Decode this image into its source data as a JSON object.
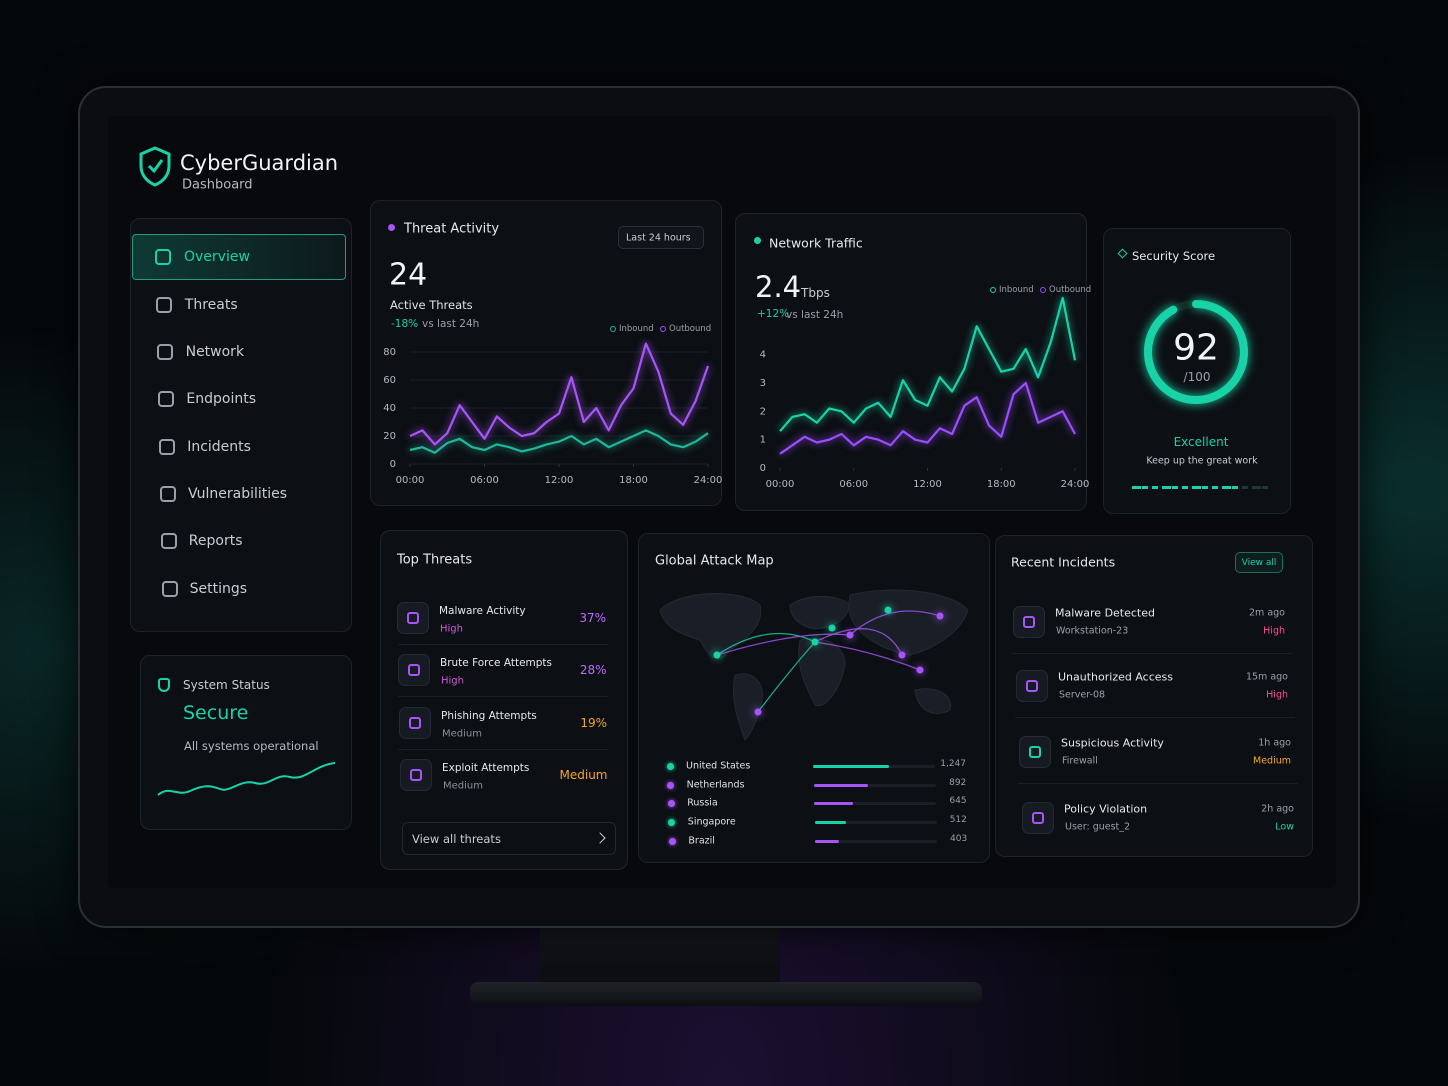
{
  "header": {
    "brand": "CyberGuardian",
    "subtitle": "Dashboard"
  },
  "nav": {
    "items": [
      "Overview",
      "Threats",
      "Network",
      "Endpoints",
      "Incidents",
      "Vulnerabilities",
      "Reports",
      "Settings"
    ],
    "active": 0
  },
  "system_status": {
    "title": "System Status",
    "status": "Secure",
    "message": "All systems operational"
  },
  "chart_data": [
    {
      "type": "line",
      "title": "Threat Activity",
      "range": "Last 24 hours",
      "stat": 24,
      "stat_label": "Active Threats",
      "change": "-18%",
      "change_label": "vs last 24h",
      "x": [
        0,
        1,
        2,
        3,
        4,
        5,
        6,
        7,
        8,
        9,
        10,
        11,
        12,
        13,
        14,
        15,
        16,
        17,
        18,
        19,
        20,
        21,
        22,
        23,
        24
      ],
      "xlim": [
        0,
        24
      ],
      "xticks": [
        {
          "value": 0,
          "label": "00:00"
        },
        {
          "value": 6,
          "label": "06:00"
        },
        {
          "value": 12,
          "label": "12:00"
        },
        {
          "value": 18,
          "label": "18:00"
        },
        {
          "value": 24,
          "label": "24:00"
        }
      ],
      "ylim": [
        0,
        90
      ],
      "yticks": [
        0,
        20,
        40,
        60,
        80
      ],
      "grid": true,
      "legend": "top-right",
      "series": [
        {
          "name": "Inbound",
          "color": "#1fb89a",
          "values": [
            10,
            12,
            8,
            15,
            18,
            12,
            10,
            14,
            12,
            9,
            11,
            14,
            16,
            20,
            14,
            18,
            12,
            16,
            20,
            24,
            20,
            14,
            12,
            16,
            22
          ]
        },
        {
          "name": "Outbound",
          "color": "#a855f7",
          "values": [
            20,
            24,
            14,
            22,
            42,
            30,
            18,
            34,
            26,
            20,
            22,
            30,
            36,
            62,
            30,
            40,
            24,
            42,
            54,
            86,
            66,
            36,
            28,
            45,
            70
          ]
        }
      ]
    },
    {
      "type": "line",
      "title": "Network Traffic",
      "stat": 2.4,
      "unit": "Tbps",
      "change": "+12%",
      "change_label": "vs last 24h",
      "x": [
        0,
        1,
        2,
        3,
        4,
        5,
        6,
        7,
        8,
        9,
        10,
        11,
        12,
        13,
        14,
        15,
        16,
        17,
        18,
        19,
        20,
        21,
        22,
        23,
        24
      ],
      "xlim": [
        0,
        24
      ],
      "xticks": [
        {
          "value": 0,
          "label": "00:00"
        },
        {
          "value": 6,
          "label": "06:00"
        },
        {
          "value": 12,
          "label": "12:00"
        },
        {
          "value": 18,
          "label": "18:00"
        },
        {
          "value": 24,
          "label": "24:00"
        }
      ],
      "ylim": [
        0,
        6
      ],
      "yticks": [
        0,
        1,
        2,
        3,
        4
      ],
      "grid": false,
      "legend": "top-right",
      "series": [
        {
          "name": "Inbound",
          "color": "#19d3a8",
          "values": [
            1.3,
            1.8,
            1.9,
            1.6,
            2.1,
            2.0,
            1.6,
            2.1,
            2.3,
            1.8,
            3.1,
            2.4,
            2.2,
            3.2,
            2.7,
            3.5,
            5.0,
            4.2,
            3.4,
            3.5,
            4.2,
            3.2,
            4.4,
            6.0,
            3.8
          ]
        },
        {
          "name": "Outbound",
          "color": "#9b4dff",
          "values": [
            0.5,
            0.8,
            1.1,
            0.9,
            1.0,
            1.2,
            0.8,
            1.1,
            1.0,
            0.8,
            1.3,
            1.0,
            0.9,
            1.4,
            1.2,
            2.2,
            2.5,
            1.5,
            1.1,
            2.6,
            3.0,
            1.6,
            1.8,
            2.0,
            1.2
          ]
        }
      ]
    }
  ],
  "security_score": {
    "title": "Security Score",
    "score": 92,
    "max": {
      "value": 100,
      "label": "/100"
    },
    "rating": "Excellent",
    "message": "Keep up the great work",
    "color": "#19d3a8"
  },
  "top_threats": {
    "title": "Top Threats",
    "link": "View all threats",
    "items": [
      {
        "name": "Malware Activity",
        "severity": "High",
        "share": "37%",
        "color": "#c06bff",
        "severity_color": "#d05ad8"
      },
      {
        "name": "Brute Force Attempts",
        "severity": "High",
        "share": "28%",
        "color": "#c06bff",
        "severity_color": "#d05ad8"
      },
      {
        "name": "Phishing Attempts",
        "severity": "Medium",
        "share": "19%",
        "color": "#f5a623",
        "severity_color": "#8a8f99"
      },
      {
        "name": "Exploit Attempts",
        "severity": "Medium",
        "share": "Medium",
        "color": "#f5a623",
        "severity_color": "#8a8f99"
      }
    ]
  },
  "attack_map": {
    "title": "Global Attack Map",
    "countries": [
      "United States",
      "Netherlands",
      "Russia",
      "Singapore",
      "Brazil"
    ],
    "values": [
      1247,
      892,
      645,
      512,
      403
    ],
    "value_labels": [
      "1,247",
      "892",
      "645",
      "512",
      "403"
    ],
    "colors": [
      "#19d3a8",
      "#a855f7",
      "#a855f7",
      "#19d3a8",
      "#a855f7"
    ]
  },
  "recent_incidents": {
    "title": "Recent Incidents",
    "link": "View all",
    "items": [
      {
        "title": "Malware Detected",
        "source": "Workstation-23",
        "time": "2m ago",
        "severity": "High",
        "color": "#ff4d8d"
      },
      {
        "title": "Unauthorized Access",
        "source": "Server-08",
        "time": "15m ago",
        "severity": "High",
        "color": "#ff4d8d"
      },
      {
        "title": "Suspicious Activity",
        "source": "Firewall",
        "time": "1h ago",
        "severity": "Medium",
        "color": "#f5a623"
      },
      {
        "title": "Policy Violation",
        "source": "User: guest_2",
        "time": "2h ago",
        "severity": "Low",
        "color": "#19d3a8"
      }
    ]
  }
}
